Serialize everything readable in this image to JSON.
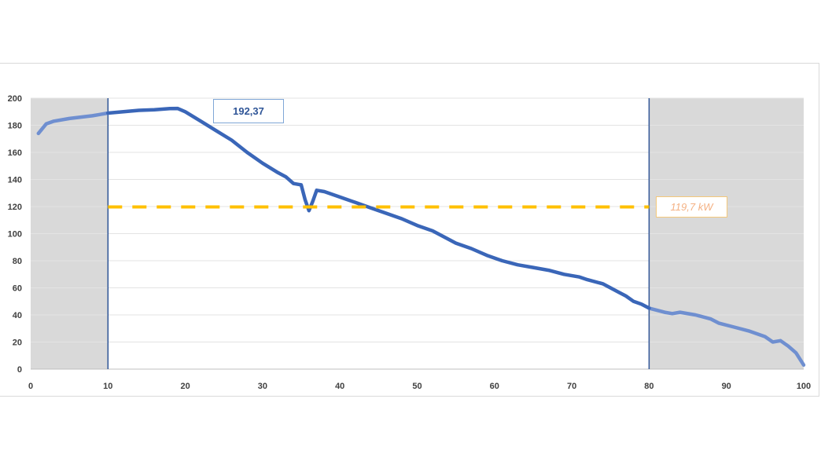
{
  "chart_data": {
    "type": "line",
    "title": "",
    "xlabel": "",
    "ylabel": "",
    "xlim": [
      0,
      100
    ],
    "ylim": [
      0,
      200
    ],
    "x_ticks": [
      "0",
      "10",
      "20",
      "30",
      "40",
      "50",
      "60",
      "70",
      "80",
      "90",
      "100"
    ],
    "y_ticks": [
      "0",
      "20",
      "40",
      "60",
      "80",
      "100",
      "120",
      "140",
      "160",
      "180",
      "200"
    ],
    "grid": "horizontal",
    "shaded_ranges": [
      [
        0,
        10
      ],
      [
        80,
        100
      ]
    ],
    "vertical_lines": [
      10,
      80
    ],
    "series": [
      {
        "x": [
          1,
          2,
          3,
          5,
          8,
          10,
          12,
          14,
          16,
          18,
          19,
          20,
          22,
          24,
          26,
          28,
          30,
          32,
          33,
          34,
          35,
          35.5,
          36,
          36.5,
          37,
          38,
          40,
          42,
          44,
          46,
          48,
          50,
          52,
          54,
          55,
          57,
          59,
          61,
          63,
          65,
          67,
          69,
          71,
          72,
          74,
          76,
          77,
          78,
          79,
          80,
          82,
          83,
          84,
          86,
          88,
          89,
          91,
          93,
          95,
          96,
          97,
          98,
          99,
          100
        ],
        "y": [
          174,
          181,
          183,
          185,
          187,
          189,
          190,
          191,
          191.5,
          192.3,
          192.4,
          190,
          183,
          176,
          169,
          160,
          152,
          145,
          142,
          137,
          136,
          125,
          117,
          124,
          132,
          131,
          127,
          123,
          119,
          115,
          111,
          106,
          102,
          96,
          93,
          89,
          84,
          80,
          77,
          75,
          73,
          70,
          68,
          66,
          63,
          57,
          54,
          50,
          48,
          45,
          42,
          41,
          42,
          40,
          37,
          34,
          31,
          28,
          24,
          20,
          21,
          17,
          12,
          3
        ],
        "color": "#4472c4"
      }
    ],
    "reference_line": {
      "value": 119.7,
      "x_range": [
        10,
        80
      ],
      "color": "#ffc000"
    },
    "annotations": [
      {
        "text": "192,37",
        "color": "#2f5597"
      },
      {
        "text": "119,7 kW",
        "color": "#f4b183"
      }
    ],
    "colors": {
      "shade": "#d9d9d9",
      "line_inside": "#3a66b8",
      "line_outside": "#6f8fd0",
      "vline": "#2f5597",
      "grid": "#e3e3e3"
    }
  }
}
